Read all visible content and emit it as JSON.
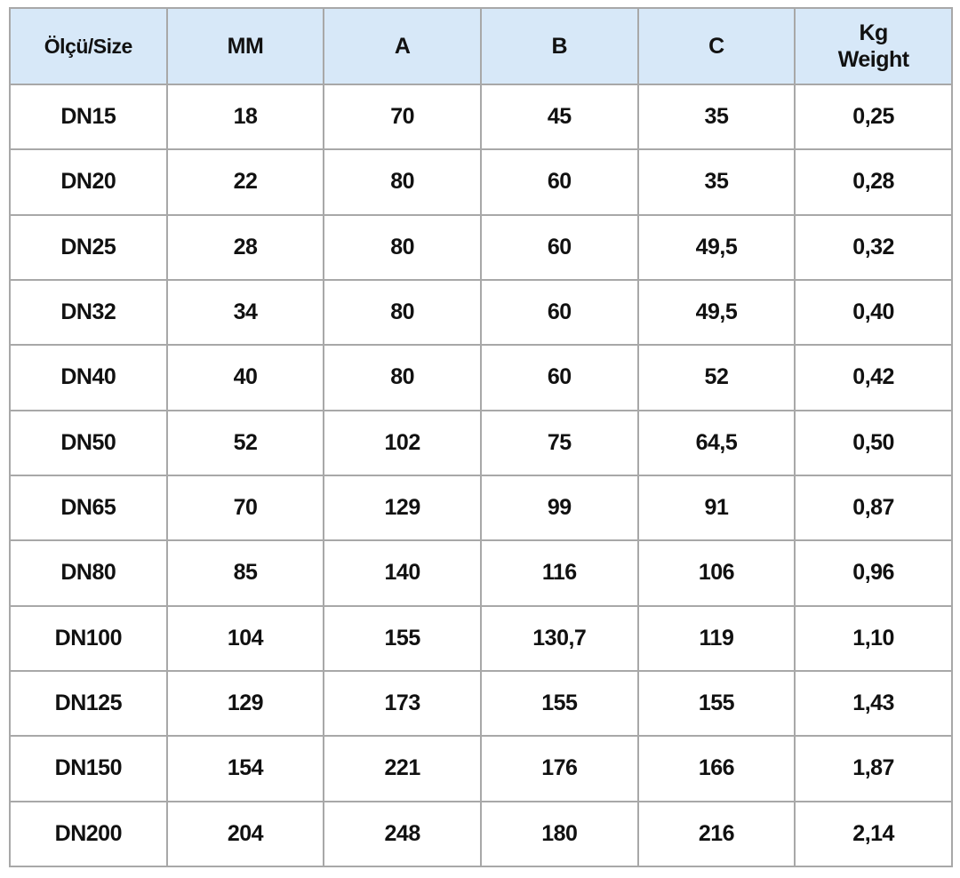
{
  "table": {
    "header": [
      "Ölçü/Size",
      "MM",
      "A",
      "B",
      "C",
      "Kg\nWeight"
    ],
    "rows": [
      [
        "DN15",
        "18",
        "70",
        "45",
        "35",
        "0,25"
      ],
      [
        "DN20",
        "22",
        "80",
        "60",
        "35",
        "0,28"
      ],
      [
        "DN25",
        "28",
        "80",
        "60",
        "49,5",
        "0,32"
      ],
      [
        "DN32",
        "34",
        "80",
        "60",
        "49,5",
        "0,40"
      ],
      [
        "DN40",
        "40",
        "80",
        "60",
        "52",
        "0,42"
      ],
      [
        "DN50",
        "52",
        "102",
        "75",
        "64,5",
        "0,50"
      ],
      [
        "DN65",
        "70",
        "129",
        "99",
        "91",
        "0,87"
      ],
      [
        "DN80",
        "85",
        "140",
        "116",
        "106",
        "0,96"
      ],
      [
        "DN100",
        "104",
        "155",
        "130,7",
        "119",
        "1,10"
      ],
      [
        "DN125",
        "129",
        "173",
        "155",
        "155",
        "1,43"
      ],
      [
        "DN150",
        "154",
        "221",
        "176",
        "166",
        "1,87"
      ],
      [
        "DN200",
        "204",
        "248",
        "180",
        "216",
        "2,14"
      ]
    ]
  }
}
